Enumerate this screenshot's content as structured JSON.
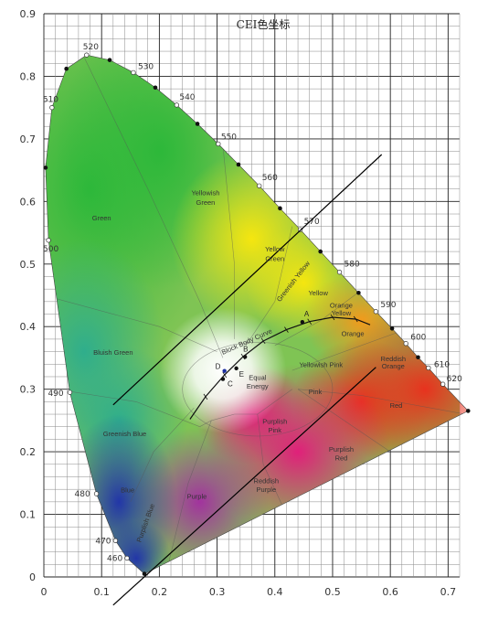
{
  "chart_data": {
    "type": "scatter",
    "title": "CEI色坐标",
    "xlabel": "",
    "ylabel": "",
    "xlim": [
      0,
      0.72
    ],
    "ylim": [
      0,
      0.9
    ],
    "grid": true,
    "x_ticks": [
      0,
      0.1,
      0.2,
      0.3,
      0.4,
      0.5,
      0.6,
      0.7
    ],
    "x_tick_labels": [
      "0",
      "0.1",
      "0.2",
      "0.3",
      "0.4",
      "0.5",
      "0.6",
      "0.7"
    ],
    "y_ticks": [
      0,
      0.1,
      0.2,
      0.3,
      0.4,
      0.5,
      0.6,
      0.7,
      0.8,
      0.9
    ],
    "y_tick_labels": [
      "0",
      "0.1",
      "0.2",
      "0.3",
      "0.4",
      "0.5",
      "0.6",
      "0.7",
      "0.8",
      "0.9"
    ],
    "spectral_locus": [
      {
        "label": "",
        "x": 0.1741,
        "y": 0.005
      },
      {
        "label": "460",
        "x": 0.144,
        "y": 0.03
      },
      {
        "label": "470",
        "x": 0.124,
        "y": 0.058
      },
      {
        "label": "480",
        "x": 0.091,
        "y": 0.133
      },
      {
        "label": "490",
        "x": 0.045,
        "y": 0.295
      },
      {
        "label": "500",
        "x": 0.008,
        "y": 0.538
      },
      {
        "label": "",
        "x": 0.003,
        "y": 0.654
      },
      {
        "label": "510",
        "x": 0.014,
        "y": 0.75
      },
      {
        "label": "",
        "x": 0.039,
        "y": 0.812
      },
      {
        "label": "520",
        "x": 0.074,
        "y": 0.834
      },
      {
        "label": "",
        "x": 0.114,
        "y": 0.826
      },
      {
        "label": "530",
        "x": 0.155,
        "y": 0.806
      },
      {
        "label": "",
        "x": 0.193,
        "y": 0.782
      },
      {
        "label": "540",
        "x": 0.23,
        "y": 0.754
      },
      {
        "label": "",
        "x": 0.266,
        "y": 0.724
      },
      {
        "label": "550",
        "x": 0.302,
        "y": 0.692
      },
      {
        "label": "",
        "x": 0.337,
        "y": 0.659
      },
      {
        "label": "560",
        "x": 0.373,
        "y": 0.625
      },
      {
        "label": "",
        "x": 0.409,
        "y": 0.589
      },
      {
        "label": "570",
        "x": 0.444,
        "y": 0.555
      },
      {
        "label": "",
        "x": 0.479,
        "y": 0.52
      },
      {
        "label": "580",
        "x": 0.512,
        "y": 0.487
      },
      {
        "label": "",
        "x": 0.545,
        "y": 0.454
      },
      {
        "label": "590",
        "x": 0.575,
        "y": 0.424
      },
      {
        "label": "",
        "x": 0.603,
        "y": 0.397
      },
      {
        "label": "600",
        "x": 0.627,
        "y": 0.373
      },
      {
        "label": "",
        "x": 0.648,
        "y": 0.351
      },
      {
        "label": "610",
        "x": 0.666,
        "y": 0.334
      },
      {
        "label": "620",
        "x": 0.691,
        "y": 0.308
      },
      {
        "label": "",
        "x": 0.7347,
        "y": 0.2653
      }
    ],
    "regions": [
      {
        "label": "Green",
        "x": 0.1,
        "y": 0.57
      },
      {
        "label": "Yellowish",
        "x": 0.28,
        "y": 0.61
      },
      {
        "label": "Green",
        "x": 0.28,
        "y": 0.595
      },
      {
        "label": "Yellow",
        "x": 0.4,
        "y": 0.52
      },
      {
        "label": "Green",
        "x": 0.4,
        "y": 0.505
      },
      {
        "label": "Greenish Yellow",
        "x": 0.435,
        "y": 0.47
      },
      {
        "label": "Yellow",
        "x": 0.475,
        "y": 0.45
      },
      {
        "label": "Orange",
        "x": 0.515,
        "y": 0.43
      },
      {
        "label": "Yellow",
        "x": 0.515,
        "y": 0.418
      },
      {
        "label": "Orange",
        "x": 0.535,
        "y": 0.385
      },
      {
        "label": "Reddish",
        "x": 0.605,
        "y": 0.345
      },
      {
        "label": "Orange",
        "x": 0.605,
        "y": 0.333
      },
      {
        "label": "Yellowish Pink",
        "x": 0.48,
        "y": 0.335
      },
      {
        "label": "Pink",
        "x": 0.47,
        "y": 0.292
      },
      {
        "label": "Red",
        "x": 0.61,
        "y": 0.27
      },
      {
        "label": "Bluish Green",
        "x": 0.12,
        "y": 0.355
      },
      {
        "label": "Equal",
        "x": 0.37,
        "y": 0.315
      },
      {
        "label": "Energy",
        "x": 0.37,
        "y": 0.301
      },
      {
        "label": "Purplish",
        "x": 0.4,
        "y": 0.245
      },
      {
        "label": "Pink",
        "x": 0.4,
        "y": 0.231
      },
      {
        "label": "Purplish",
        "x": 0.515,
        "y": 0.2
      },
      {
        "label": "Red",
        "x": 0.515,
        "y": 0.186
      },
      {
        "label": "Greenish Blue",
        "x": 0.14,
        "y": 0.225
      },
      {
        "label": "Reddish",
        "x": 0.385,
        "y": 0.15
      },
      {
        "label": "Purple",
        "x": 0.385,
        "y": 0.136
      },
      {
        "label": "Blue",
        "x": 0.145,
        "y": 0.135
      },
      {
        "label": "Purple",
        "x": 0.265,
        "y": 0.125
      },
      {
        "label": "Purplish Blue",
        "x": 0.18,
        "y": 0.085
      }
    ],
    "black_body_curve": {
      "label": "Block Body Curve",
      "points": [
        {
          "x": 0.253,
          "y": 0.252
        },
        {
          "x": 0.28,
          "y": 0.288
        },
        {
          "x": 0.313,
          "y": 0.323
        },
        {
          "x": 0.345,
          "y": 0.352
        },
        {
          "x": 0.38,
          "y": 0.377
        },
        {
          "x": 0.42,
          "y": 0.395
        },
        {
          "x": 0.46,
          "y": 0.408
        },
        {
          "x": 0.5,
          "y": 0.415
        },
        {
          "x": 0.54,
          "y": 0.412
        },
        {
          "x": 0.565,
          "y": 0.403
        }
      ]
    },
    "named_points": [
      {
        "label": "A",
        "x": 0.4476,
        "y": 0.4074
      },
      {
        "label": "B",
        "x": 0.3484,
        "y": 0.3516
      },
      {
        "label": "C",
        "x": 0.3101,
        "y": 0.3162
      },
      {
        "label": "D",
        "x": 0.3128,
        "y": 0.3292
      },
      {
        "label": "E",
        "x": 0.3333,
        "y": 0.3333
      }
    ],
    "lines": [
      {
        "x1": 0.12,
        "y1": 0.275,
        "x2": 0.585,
        "y2": 0.675
      },
      {
        "x1": 0.12,
        "y1": -0.045,
        "x2": 0.575,
        "y2": 0.335
      }
    ]
  }
}
